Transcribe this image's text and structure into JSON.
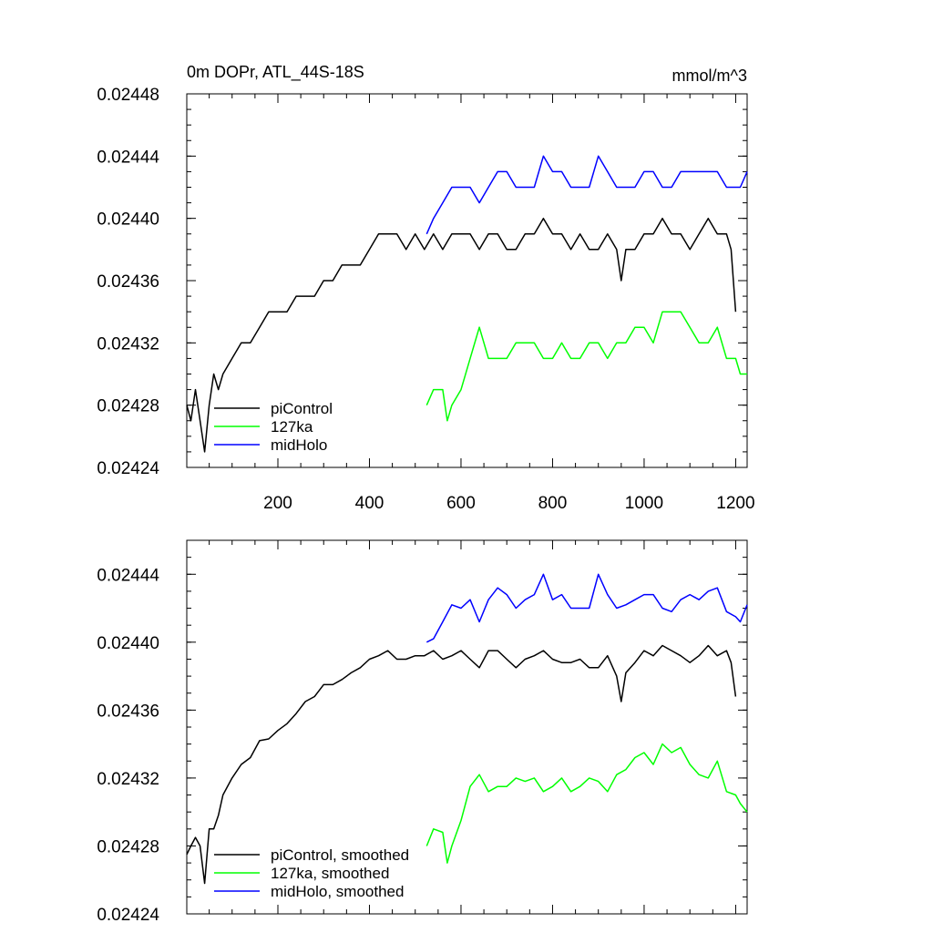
{
  "chart_data": [
    {
      "type": "line",
      "title": "0m DOPr, ATL_44S-18S",
      "units": "mmol/m^3",
      "xlim": [
        1,
        1225
      ],
      "ylim": [
        0.02424,
        0.02448
      ],
      "x_ticks": [
        200,
        400,
        600,
        800,
        1000,
        1200
      ],
      "x_tick_labels": [
        "200",
        "400",
        "600",
        "800",
        "1000",
        "1200"
      ],
      "y_ticks": [
        0.02424,
        0.02428,
        0.02432,
        0.02436,
        0.0244,
        0.02444,
        0.02448
      ],
      "y_tick_labels": [
        "0.02424",
        "0.02428",
        "0.02432",
        "0.02436",
        "0.02440",
        "0.02444",
        "0.02448"
      ],
      "legend": {
        "placement": "bottom-left",
        "entries": [
          "piControl",
          "127ka",
          "midHolo"
        ]
      },
      "series": [
        {
          "name": "piControl",
          "color": "#000000",
          "x": [
            1,
            10,
            20,
            30,
            40,
            50,
            60,
            70,
            80,
            100,
            120,
            140,
            160,
            180,
            200,
            220,
            240,
            260,
            280,
            300,
            320,
            340,
            360,
            380,
            400,
            420,
            440,
            460,
            480,
            500,
            520,
            540,
            560,
            580,
            600,
            620,
            640,
            660,
            680,
            700,
            720,
            740,
            760,
            780,
            800,
            820,
            840,
            860,
            880,
            900,
            920,
            940,
            950,
            960,
            980,
            1000,
            1020,
            1040,
            1060,
            1080,
            1100,
            1120,
            1140,
            1160,
            1180,
            1190,
            1200
          ],
          "y": [
            0.02428,
            0.02427,
            0.02429,
            0.02427,
            0.02425,
            0.02428,
            0.0243,
            0.02429,
            0.0243,
            0.02431,
            0.02432,
            0.02432,
            0.02433,
            0.02434,
            0.02434,
            0.02434,
            0.02435,
            0.02435,
            0.02435,
            0.02436,
            0.02436,
            0.02437,
            0.02437,
            0.02437,
            0.02438,
            0.02439,
            0.02439,
            0.02439,
            0.02438,
            0.02439,
            0.02438,
            0.02439,
            0.02438,
            0.02439,
            0.02439,
            0.02439,
            0.02438,
            0.02439,
            0.02439,
            0.02438,
            0.02438,
            0.02439,
            0.02439,
            0.0244,
            0.02439,
            0.02439,
            0.02438,
            0.02439,
            0.02438,
            0.02438,
            0.02439,
            0.02438,
            0.02436,
            0.02438,
            0.02438,
            0.02439,
            0.02439,
            0.0244,
            0.02439,
            0.02439,
            0.02438,
            0.02439,
            0.0244,
            0.02439,
            0.02439,
            0.02438,
            0.02434
          ]
        },
        {
          "name": "127ka",
          "color": "#00ff00",
          "x": [
            525,
            540,
            560,
            570,
            580,
            600,
            620,
            640,
            660,
            680,
            700,
            720,
            740,
            760,
            780,
            800,
            820,
            840,
            860,
            880,
            900,
            920,
            940,
            960,
            980,
            1000,
            1020,
            1040,
            1060,
            1080,
            1100,
            1120,
            1140,
            1160,
            1180,
            1200,
            1210,
            1225
          ],
          "y": [
            0.02428,
            0.02429,
            0.02429,
            0.02427,
            0.02428,
            0.02429,
            0.02431,
            0.02433,
            0.02431,
            0.02431,
            0.02431,
            0.02432,
            0.02432,
            0.02432,
            0.02431,
            0.02431,
            0.02432,
            0.02431,
            0.02431,
            0.02432,
            0.02432,
            0.02431,
            0.02432,
            0.02432,
            0.02433,
            0.02433,
            0.02432,
            0.02434,
            0.02434,
            0.02434,
            0.02433,
            0.02432,
            0.02432,
            0.02433,
            0.02431,
            0.02431,
            0.0243,
            0.0243
          ]
        },
        {
          "name": "midHolo",
          "color": "#0000ff",
          "x": [
            525,
            540,
            560,
            580,
            600,
            620,
            640,
            660,
            680,
            700,
            720,
            740,
            760,
            780,
            800,
            820,
            840,
            860,
            880,
            900,
            920,
            940,
            960,
            980,
            1000,
            1020,
            1040,
            1060,
            1080,
            1100,
            1120,
            1140,
            1160,
            1180,
            1200,
            1210,
            1225
          ],
          "y": [
            0.02439,
            0.0244,
            0.02441,
            0.02442,
            0.02442,
            0.02442,
            0.02441,
            0.02442,
            0.02443,
            0.02443,
            0.02442,
            0.02442,
            0.02442,
            0.02444,
            0.02443,
            0.02443,
            0.02442,
            0.02442,
            0.02442,
            0.02444,
            0.02443,
            0.02442,
            0.02442,
            0.02442,
            0.02443,
            0.02443,
            0.02442,
            0.02442,
            0.02443,
            0.02443,
            0.02443,
            0.02443,
            0.02443,
            0.02442,
            0.02442,
            0.02442,
            0.02443
          ]
        }
      ]
    },
    {
      "type": "line",
      "title": "",
      "xlim": [
        1,
        1225
      ],
      "ylim": [
        0.02424,
        0.02446
      ],
      "y_ticks": [
        0.02424,
        0.02428,
        0.02432,
        0.02436,
        0.0244,
        0.02444
      ],
      "y_tick_labels": [
        "0.02424",
        "0.02428",
        "0.02432",
        "0.02436",
        "0.02440",
        "0.02444"
      ],
      "x_ticks": [
        200,
        400,
        600,
        800,
        1000,
        1200
      ],
      "legend": {
        "placement": "bottom-left",
        "entries": [
          "piControl, smoothed",
          "127ka, smoothed",
          "midHolo, smoothed"
        ]
      },
      "series": [
        {
          "name": "piControl, smoothed",
          "color": "#000000",
          "x": [
            1,
            10,
            20,
            30,
            40,
            50,
            60,
            70,
            80,
            100,
            120,
            140,
            160,
            180,
            200,
            220,
            240,
            260,
            280,
            300,
            320,
            340,
            360,
            380,
            400,
            420,
            440,
            460,
            480,
            500,
            520,
            540,
            560,
            580,
            600,
            620,
            640,
            660,
            680,
            700,
            720,
            740,
            760,
            780,
            800,
            820,
            840,
            860,
            880,
            900,
            920,
            940,
            950,
            960,
            980,
            1000,
            1020,
            1040,
            1060,
            1080,
            1100,
            1120,
            1140,
            1160,
            1180,
            1190,
            1200
          ],
          "y": [
            0.024275,
            0.02428,
            0.024285,
            0.02428,
            0.024258,
            0.02429,
            0.02429,
            0.024298,
            0.02431,
            0.02432,
            0.024328,
            0.024332,
            0.024342,
            0.024343,
            0.024348,
            0.024352,
            0.024358,
            0.024365,
            0.024368,
            0.024375,
            0.024375,
            0.024378,
            0.024382,
            0.024385,
            0.02439,
            0.024392,
            0.024395,
            0.02439,
            0.02439,
            0.024392,
            0.024392,
            0.024395,
            0.02439,
            0.024392,
            0.024395,
            0.02439,
            0.024385,
            0.024395,
            0.024395,
            0.02439,
            0.024385,
            0.02439,
            0.024392,
            0.024395,
            0.02439,
            0.024388,
            0.024388,
            0.02439,
            0.024385,
            0.024385,
            0.024392,
            0.02438,
            0.024365,
            0.024382,
            0.024388,
            0.024395,
            0.024392,
            0.024398,
            0.024395,
            0.024392,
            0.024388,
            0.024392,
            0.024398,
            0.024392,
            0.024395,
            0.024388,
            0.024368
          ]
        },
        {
          "name": "127ka, smoothed",
          "color": "#00ff00",
          "x": [
            525,
            540,
            560,
            570,
            580,
            600,
            620,
            640,
            660,
            680,
            700,
            720,
            740,
            760,
            780,
            800,
            820,
            840,
            860,
            880,
            900,
            920,
            940,
            960,
            980,
            1000,
            1020,
            1040,
            1060,
            1080,
            1100,
            1120,
            1140,
            1160,
            1180,
            1200,
            1210,
            1225
          ],
          "y": [
            0.02428,
            0.02429,
            0.024288,
            0.02427,
            0.02428,
            0.024295,
            0.024315,
            0.024322,
            0.024312,
            0.024315,
            0.024315,
            0.02432,
            0.024318,
            0.02432,
            0.024312,
            0.024315,
            0.02432,
            0.024312,
            0.024315,
            0.02432,
            0.024318,
            0.024312,
            0.024322,
            0.024325,
            0.024332,
            0.024335,
            0.024328,
            0.02434,
            0.024335,
            0.024338,
            0.024328,
            0.024322,
            0.02432,
            0.02433,
            0.024312,
            0.02431,
            0.024305,
            0.0243
          ]
        },
        {
          "name": "midHolo, smoothed",
          "color": "#0000ff",
          "x": [
            525,
            540,
            560,
            580,
            600,
            620,
            640,
            660,
            680,
            700,
            720,
            740,
            760,
            780,
            800,
            820,
            840,
            860,
            880,
            900,
            920,
            940,
            960,
            980,
            1000,
            1020,
            1040,
            1060,
            1080,
            1100,
            1120,
            1140,
            1160,
            1180,
            1200,
            1210,
            1225
          ],
          "y": [
            0.0244,
            0.024402,
            0.024412,
            0.024422,
            0.02442,
            0.024425,
            0.024412,
            0.024425,
            0.024432,
            0.024428,
            0.02442,
            0.024425,
            0.024428,
            0.02444,
            0.024425,
            0.024428,
            0.02442,
            0.02442,
            0.02442,
            0.02444,
            0.024428,
            0.02442,
            0.024422,
            0.024425,
            0.024428,
            0.024428,
            0.02442,
            0.024418,
            0.024425,
            0.024428,
            0.024425,
            0.02443,
            0.024432,
            0.024418,
            0.024415,
            0.024412,
            0.024422
          ]
        }
      ]
    }
  ]
}
